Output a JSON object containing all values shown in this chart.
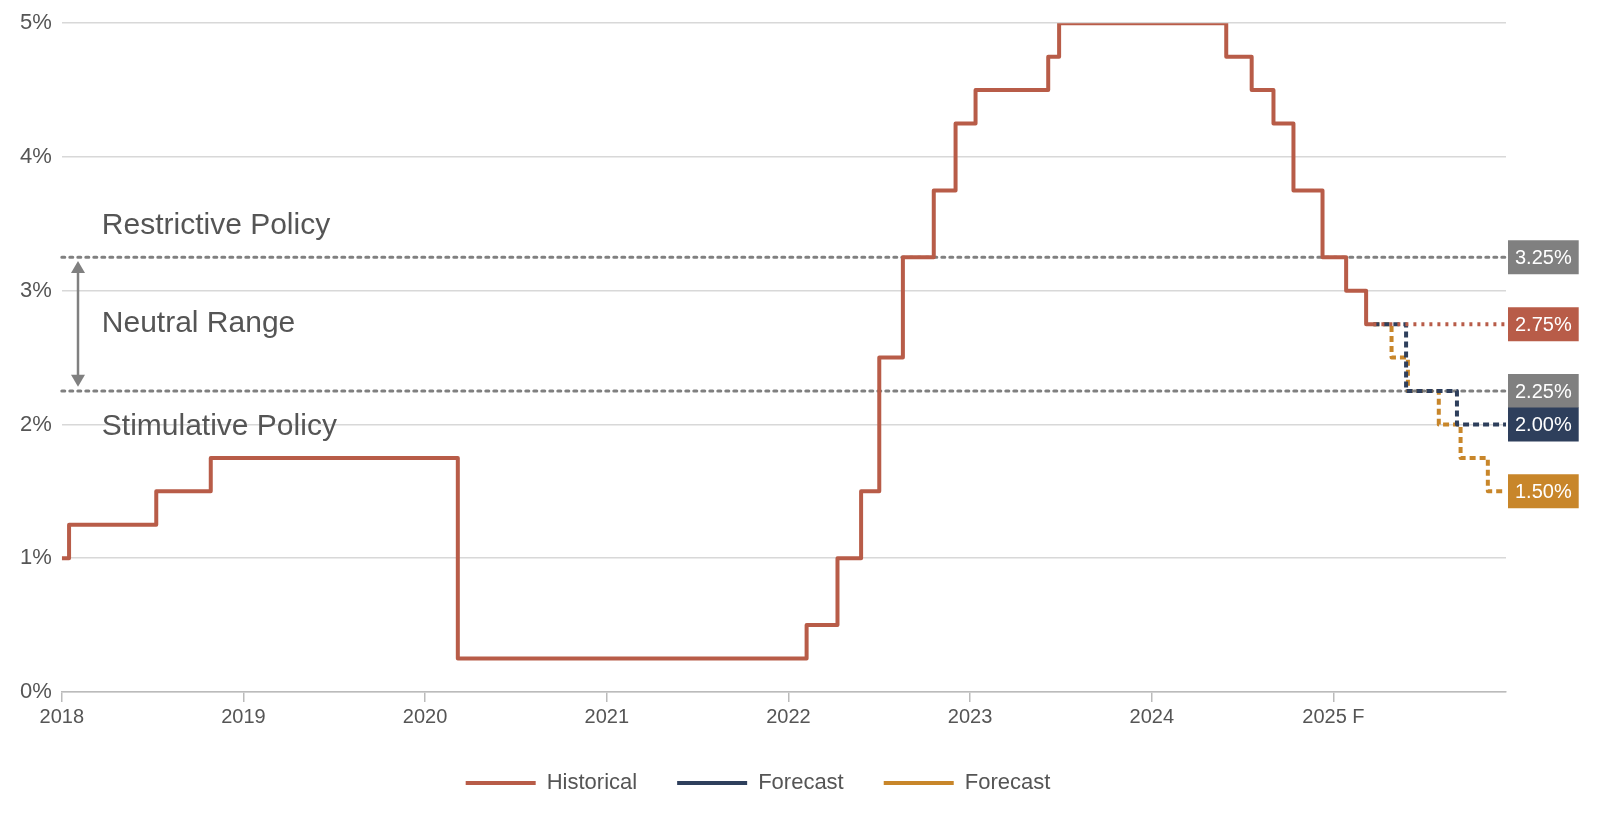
{
  "chart_data": {
    "type": "step",
    "xlim": [
      2018,
      2025.95
    ],
    "xticks": [
      2018,
      2019,
      2020,
      2021,
      2022,
      2023,
      2024,
      {
        "value": 2025,
        "label": "2025 F"
      }
    ],
    "ylim": [
      0,
      5
    ],
    "yticks": [
      {
        "value": 0,
        "label": "0%"
      },
      {
        "value": 1,
        "label": "1%"
      },
      {
        "value": 2,
        "label": "2%"
      },
      {
        "value": 3,
        "label": "3%"
      },
      {
        "value": 4,
        "label": "4%"
      },
      {
        "value": 5,
        "label": "5%"
      }
    ],
    "grid": "y",
    "legend": "bottom",
    "marker": "none",
    "ref_lines": [
      {
        "axis": "y",
        "value": 3.25,
        "label": "3.25%",
        "color": "#808080",
        "line_style": "dotted"
      },
      {
        "axis": "y",
        "value": 2.25,
        "label": "2.25%",
        "color": "#808080",
        "line_style": "dotted"
      }
    ],
    "annotations": [
      "Restrictive Policy",
      "Neutral Range",
      "Stimulative Policy"
    ],
    "series": [
      {
        "name": "Historical",
        "color": "#b85c48",
        "line_style": "solid",
        "x": [
          2018,
          2018.04,
          2018.52,
          2018.82,
          2020.18,
          2022.1,
          2022.27,
          2022.4,
          2022.5,
          2022.63,
          2022.8,
          2022.92,
          2023.03,
          2023.43,
          2023.49,
          2024.41,
          2024.55,
          2024.67,
          2024.78,
          2024.94,
          2025.07,
          2025.18,
          2025.22
        ],
        "values": [
          1.0,
          1.25,
          1.5,
          1.75,
          0.25,
          0.5,
          1.0,
          1.5,
          2.5,
          3.25,
          3.75,
          4.25,
          4.5,
          4.75,
          5.0,
          4.75,
          4.5,
          4.25,
          3.75,
          3.25,
          3.0,
          2.75,
          2.75
        ]
      },
      {
        "color": "#b85c48",
        "line_style": "dotted",
        "x": [
          2025.22,
          2025.95
        ],
        "values": [
          2.75,
          2.75
        ],
        "value_labels": [
          null,
          "2.75%"
        ]
      },
      {
        "name": "Forecast",
        "color": "#2e3f5c",
        "line_style": "dashed",
        "x": [
          2025.22,
          2025.4,
          2025.68,
          2025.95
        ],
        "values": [
          2.75,
          2.25,
          2.0,
          2.0
        ],
        "value_labels": [
          null,
          null,
          null,
          "2.00%"
        ]
      },
      {
        "name": "Forecast",
        "color": "#c8862a",
        "line_style": "dashed",
        "x": [
          2025.22,
          2025.32,
          2025.41,
          2025.58,
          2025.7,
          2025.85,
          2025.95
        ],
        "values": [
          2.75,
          2.5,
          2.25,
          2.0,
          1.75,
          1.5,
          1.5
        ],
        "value_labels": [
          null,
          null,
          null,
          null,
          null,
          null,
          "1.50%"
        ]
      }
    ]
  }
}
